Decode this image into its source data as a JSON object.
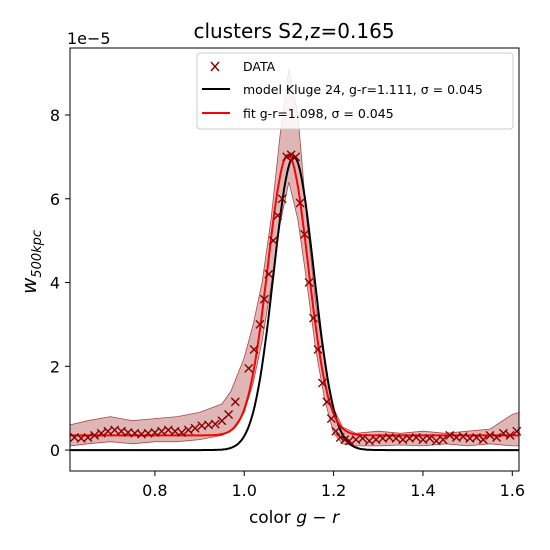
{
  "chart_data": {
    "type": "line",
    "title": "clusters S2,z=0.165",
    "xlabel": "color g - r",
    "ylabel": "w_500kpc",
    "ylabel_main": "w",
    "ylabel_sub": "500kpc",
    "offset_text": "1e−5",
    "xlim": [
      0.61,
      1.615
    ],
    "ylim": [
      -0.5,
      9.6
    ],
    "y_scale_factor": 1e-05,
    "xticks": [
      0.8,
      1.0,
      1.2,
      1.4,
      1.6
    ],
    "xtick_labels": [
      "0.8",
      "1.0",
      "1.2",
      "1.4",
      "1.6"
    ],
    "yticks": [
      0,
      2,
      4,
      6,
      8
    ],
    "ytick_labels": [
      "0",
      "2",
      "4",
      "6",
      "8"
    ],
    "grid": false,
    "legend_position": "top-right",
    "colors": {
      "data": "#8b0000",
      "model": "#000000",
      "fit": "#ff0000",
      "band_fill": "#c47a7a",
      "band_edge": "#a84848"
    },
    "series": [
      {
        "name": "DATA",
        "kind": "scatter",
        "marker": "x",
        "x": [
          0.62,
          0.635,
          0.65,
          0.665,
          0.68,
          0.695,
          0.71,
          0.725,
          0.74,
          0.755,
          0.77,
          0.785,
          0.8,
          0.815,
          0.83,
          0.845,
          0.86,
          0.875,
          0.89,
          0.905,
          0.92,
          0.935,
          0.95,
          0.965,
          0.98,
          1.01,
          1.022,
          1.035,
          1.045,
          1.055,
          1.065,
          1.075,
          1.085,
          1.095,
          1.105,
          1.115,
          1.125,
          1.135,
          1.145,
          1.155,
          1.165,
          1.175,
          1.185,
          1.195,
          1.205,
          1.215,
          1.225,
          1.235,
          1.25,
          1.265,
          1.28,
          1.295,
          1.31,
          1.325,
          1.34,
          1.355,
          1.37,
          1.385,
          1.4,
          1.415,
          1.43,
          1.445,
          1.46,
          1.475,
          1.49,
          1.505,
          1.52,
          1.535,
          1.55,
          1.565,
          1.58,
          1.595,
          1.61
        ],
        "y": [
          0.3,
          0.28,
          0.3,
          0.35,
          0.4,
          0.45,
          0.48,
          0.45,
          0.42,
          0.4,
          0.38,
          0.4,
          0.42,
          0.45,
          0.48,
          0.45,
          0.42,
          0.48,
          0.52,
          0.58,
          0.6,
          0.62,
          0.7,
          0.85,
          1.15,
          1.95,
          2.4,
          3.0,
          3.6,
          4.2,
          5.0,
          5.6,
          6.0,
          7.0,
          7.05,
          7.0,
          5.9,
          5.15,
          4.0,
          3.15,
          2.4,
          1.6,
          1.15,
          0.75,
          0.45,
          0.3,
          0.25,
          0.22,
          0.25,
          0.28,
          0.22,
          0.25,
          0.28,
          0.3,
          0.28,
          0.25,
          0.28,
          0.3,
          0.25,
          0.28,
          0.22,
          0.25,
          0.35,
          0.3,
          0.32,
          0.28,
          0.3,
          0.25,
          0.35,
          0.3,
          0.4,
          0.35,
          0.45
        ]
      },
      {
        "name": "model Kluge 24, g-r=1.111, σ = 0.045",
        "kind": "line",
        "mu": 1.111,
        "sigma": 0.045,
        "amplitude": 7.0,
        "baseline": 0.0,
        "x": [
          0.61,
          0.9,
          0.95,
          0.98,
          1.0,
          1.02,
          1.04,
          1.06,
          1.08,
          1.1,
          1.111,
          1.12,
          1.14,
          1.16,
          1.18,
          1.2,
          1.22,
          1.25,
          1.3,
          1.615
        ],
        "y": [
          0.0,
          0.0,
          0.03,
          0.15,
          0.33,
          0.7,
          1.3,
          2.31,
          3.96,
          6.25,
          7.0,
          6.86,
          5.41,
          3.6,
          2.19,
          1.2,
          0.57,
          0.15,
          0.02,
          0.0
        ]
      },
      {
        "name": "fit g-r=1.098, σ = 0.045",
        "kind": "line",
        "mu": 1.098,
        "sigma": 0.045,
        "amplitude": 6.7,
        "baseline": 0.35,
        "x": [
          0.61,
          0.9,
          0.95,
          0.98,
          1.0,
          1.02,
          1.04,
          1.06,
          1.08,
          1.098,
          1.12,
          1.14,
          1.16,
          1.18,
          1.2,
          1.22,
          1.25,
          1.3,
          1.615
        ],
        "y": [
          0.35,
          0.35,
          0.42,
          0.63,
          0.88,
          1.4,
          2.46,
          3.7,
          5.75,
          7.05,
          5.89,
          4.19,
          2.63,
          1.27,
          0.89,
          0.52,
          0.44,
          0.36,
          0.35
        ]
      }
    ],
    "band": {
      "x": [
        0.61,
        0.65,
        0.7,
        0.75,
        0.8,
        0.85,
        0.9,
        0.95,
        0.97,
        1.0,
        1.02,
        1.04,
        1.06,
        1.08,
        1.1,
        1.12,
        1.14,
        1.16,
        1.18,
        1.2,
        1.22,
        1.25,
        1.3,
        1.35,
        1.4,
        1.45,
        1.5,
        1.55,
        1.6,
        1.615
      ],
      "upper": [
        0.6,
        0.7,
        0.8,
        0.7,
        0.75,
        0.8,
        0.9,
        1.1,
        1.4,
        2.2,
        3.0,
        4.0,
        5.5,
        7.5,
        9.1,
        8.0,
        5.5,
        3.5,
        2.1,
        1.0,
        0.55,
        0.4,
        0.45,
        0.4,
        0.45,
        0.4,
        0.45,
        0.5,
        0.85,
        0.9
      ],
      "lower": [
        0.1,
        0.15,
        0.2,
        0.15,
        0.2,
        0.2,
        0.25,
        0.35,
        0.45,
        0.9,
        1.6,
        2.6,
        3.9,
        5.4,
        6.4,
        5.5,
        4.0,
        2.4,
        1.2,
        0.4,
        0.15,
        0.1,
        0.1,
        0.12,
        0.1,
        0.15,
        0.1,
        0.15,
        0.1,
        0.1
      ]
    }
  }
}
